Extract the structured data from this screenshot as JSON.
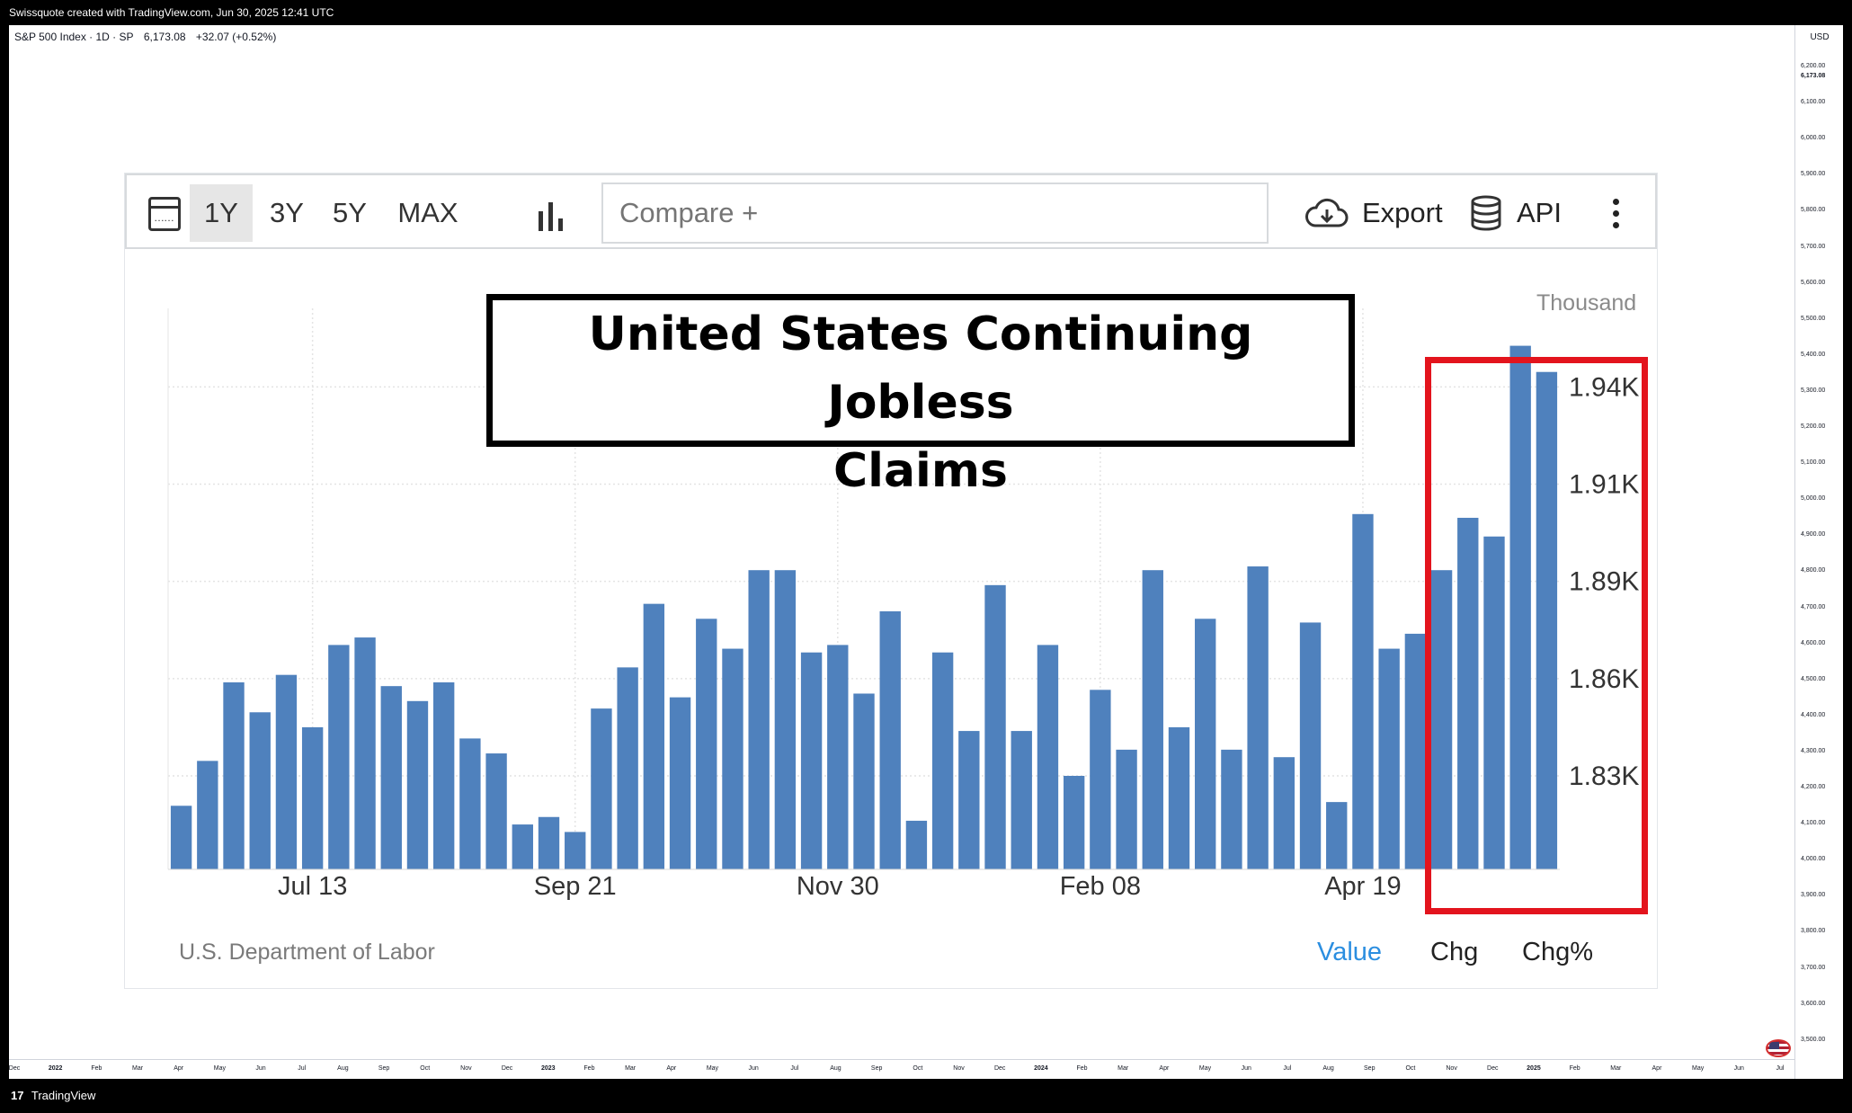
{
  "header": {
    "title": "Swissquote created with TradingView.com, Jun 30, 2025 12:41 UTC",
    "symbol": "S&P 500 Index · 1D · SP",
    "price": "6,173.08",
    "change": "+32.07 (+0.52%)"
  },
  "price_axis": {
    "currency": "USD",
    "current_price": "6,173.08",
    "ticks": [
      "6,200.00",
      "6,100.00",
      "6,000.00",
      "5,900.00",
      "5,800.00",
      "5,700.00",
      "5,600.00",
      "5,500.00",
      "5,400.00",
      "5,300.00",
      "5,200.00",
      "5,100.00",
      "5,000.00",
      "4,900.00",
      "4,800.00",
      "4,700.00",
      "4,600.00",
      "4,500.00",
      "4,400.00",
      "4,300.00",
      "4,200.00",
      "4,100.00",
      "4,000.00",
      "3,900.00",
      "3,800.00",
      "3,700.00",
      "3,600.00",
      "3,500.00"
    ]
  },
  "time_axis": {
    "ticks": [
      {
        "label": "Dec",
        "year": false
      },
      {
        "label": "2022",
        "year": true
      },
      {
        "label": "Feb",
        "year": false
      },
      {
        "label": "Mar",
        "year": false
      },
      {
        "label": "Apr",
        "year": false
      },
      {
        "label": "May",
        "year": false
      },
      {
        "label": "Jun",
        "year": false
      },
      {
        "label": "Jul",
        "year": false
      },
      {
        "label": "Aug",
        "year": false
      },
      {
        "label": "Sep",
        "year": false
      },
      {
        "label": "Oct",
        "year": false
      },
      {
        "label": "Nov",
        "year": false
      },
      {
        "label": "Dec",
        "year": false
      },
      {
        "label": "2023",
        "year": true
      },
      {
        "label": "Feb",
        "year": false
      },
      {
        "label": "Mar",
        "year": false
      },
      {
        "label": "Apr",
        "year": false
      },
      {
        "label": "May",
        "year": false
      },
      {
        "label": "Jun",
        "year": false
      },
      {
        "label": "Jul",
        "year": false
      },
      {
        "label": "Aug",
        "year": false
      },
      {
        "label": "Sep",
        "year": false
      },
      {
        "label": "Oct",
        "year": false
      },
      {
        "label": "Nov",
        "year": false
      },
      {
        "label": "Dec",
        "year": false
      },
      {
        "label": "2024",
        "year": true
      },
      {
        "label": "Feb",
        "year": false
      },
      {
        "label": "Mar",
        "year": false
      },
      {
        "label": "Apr",
        "year": false
      },
      {
        "label": "May",
        "year": false
      },
      {
        "label": "Jun",
        "year": false
      },
      {
        "label": "Jul",
        "year": false
      },
      {
        "label": "Aug",
        "year": false
      },
      {
        "label": "Sep",
        "year": false
      },
      {
        "label": "Oct",
        "year": false
      },
      {
        "label": "Nov",
        "year": false
      },
      {
        "label": "Dec",
        "year": false
      },
      {
        "label": "2025",
        "year": true
      },
      {
        "label": "Feb",
        "year": false
      },
      {
        "label": "Mar",
        "year": false
      },
      {
        "label": "Apr",
        "year": false
      },
      {
        "label": "May",
        "year": false
      },
      {
        "label": "Jun",
        "year": false
      },
      {
        "label": "Jul",
        "year": false
      }
    ]
  },
  "footer": {
    "brand": "TradingView",
    "brand_mark": "17"
  },
  "toolbar": {
    "ranges": [
      "1Y",
      "3Y",
      "5Y",
      "MAX"
    ],
    "active_range": "1Y",
    "compare_placeholder": "Compare +",
    "export_label": "Export",
    "api_label": "API"
  },
  "panel": {
    "source": "U.S. Department of Labor",
    "tabs": [
      "Value",
      "Chg",
      "Chg%"
    ],
    "active_tab": "Value"
  },
  "chart_data": {
    "type": "bar",
    "title": "United States Continuing Jobless Claims",
    "title_lines": [
      "United States Continuing Jobless",
      "Claims"
    ],
    "unit": "Thousand",
    "y_ticks": [
      "1.83K",
      "1.86K",
      "1.89K",
      "1.91K",
      "1.94K"
    ],
    "y_tick_values": [
      1830,
      1856,
      1882,
      1908,
      1934
    ],
    "ylim": [
      1805,
      1955
    ],
    "x_tick_labels": [
      "Jul 13",
      "Sep 21",
      "Nov 30",
      "Feb 08",
      "Apr 19"
    ],
    "x_tick_bar_index": [
      5,
      15,
      25,
      35,
      45
    ],
    "grid": true,
    "highlight_last_bars": 5,
    "series": [
      {
        "values": [
          1822,
          1834,
          1855,
          1847,
          1857,
          1843,
          1865,
          1867,
          1854,
          1850,
          1855,
          1840,
          1836,
          1817,
          1819,
          1815,
          1848,
          1859,
          1876,
          1851,
          1872,
          1864,
          1885,
          1885,
          1863,
          1865,
          1852,
          1874,
          1818,
          1863,
          1842,
          1881,
          1842,
          1865,
          1830,
          1853,
          1837,
          1885,
          1843,
          1872,
          1837,
          1886,
          1835,
          1871,
          1823,
          1900,
          1864,
          1868,
          1885,
          1899,
          1894,
          1945,
          1938
        ]
      }
    ]
  }
}
